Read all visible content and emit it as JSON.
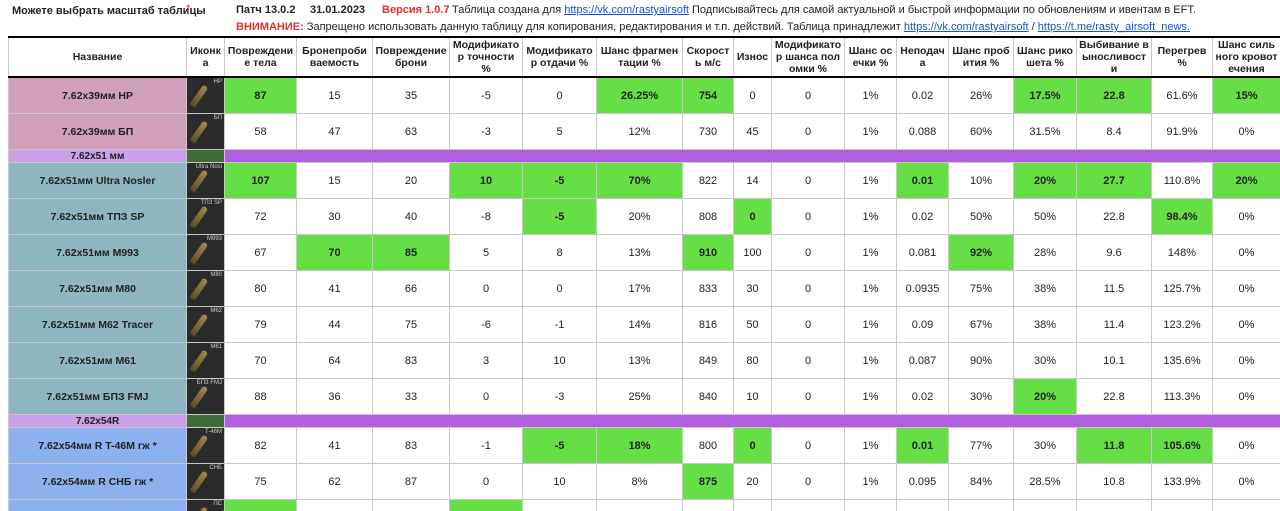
{
  "top": {
    "scale_hint": "Можете выбрать масштаб таблицы",
    "arrow": "↑",
    "patch": "Патч 13.0.2",
    "date": "31.01.2023",
    "version": "Версия 1.0.7",
    "info": [
      "Таблица создана для",
      "https://vk.com/rastyairsoft",
      "Подписывайтесь для самой актуальной и быстрой информации по обновлениям и ивентам в EFT."
    ]
  },
  "warning": {
    "label": "ВНИМАНИЕ:",
    "text": "Запрещено использовать данную таблицу для копирования, редактирования и т.п. действий. Таблица принадлежит",
    "link1": "https://vk.com/rastyairsoft",
    "sep": "/",
    "link2": "https://t.me/rasty_airsoft_news."
  },
  "table": {
    "headers": [
      "Название",
      "Иконка",
      "Повреждение тела",
      "Бронепробиваемость",
      "Повреждение брони",
      "Модификатор точности %",
      "Модификатор отдачи %",
      "Шанс фрагментации %",
      "Скорость м/с",
      "Износ",
      "Модификатор шанса поломки %",
      "Шанс осечки %",
      "Неподача",
      "Шанс пробития %",
      "Шанс рикошета %",
      "Выбивание выносливости",
      "Перегрев %",
      "Шанс сильного кровотечения"
    ],
    "rows": [
      {
        "name": "7.62x39мм HP",
        "icon": "HP",
        "family": "39",
        "cells": [
          "87",
          "15",
          "35",
          "-5",
          "0",
          "26.25%",
          "754",
          "0",
          "0",
          "1%",
          "0.02",
          "26%",
          "17.5%",
          "22.8",
          "61.6%",
          "15%"
        ],
        "green": [
          0,
          5,
          6,
          12,
          13,
          15
        ]
      },
      {
        "name": "7.62x39мм БП",
        "icon": "БП",
        "family": "39",
        "cells": [
          "58",
          "47",
          "63",
          "-3",
          "5",
          "12%",
          "730",
          "45",
          "0",
          "1%",
          "0.088",
          "60%",
          "31.5%",
          "8.4",
          "91.9%",
          "0%"
        ],
        "green": []
      },
      {
        "group": "7.62x51 мм"
      },
      {
        "name": "7.62x51мм Ultra Nosler",
        "icon": "Ultra Nosl",
        "family": "51",
        "cells": [
          "107",
          "15",
          "20",
          "10",
          "-5",
          "70%",
          "822",
          "14",
          "0",
          "1%",
          "0.01",
          "10%",
          "20%",
          "27.7",
          "110.8%",
          "20%"
        ],
        "green": [
          0,
          3,
          4,
          5,
          10,
          12,
          13,
          15
        ]
      },
      {
        "name": "7.62x51мм ТПЗ SP",
        "icon": "ТПЗ SP",
        "family": "51",
        "cells": [
          "72",
          "30",
          "40",
          "-8",
          "-5",
          "20%",
          "808",
          "0",
          "0",
          "1%",
          "0.02",
          "50%",
          "50%",
          "22.8",
          "98.4%",
          "0%"
        ],
        "green": [
          4,
          7,
          14
        ]
      },
      {
        "name": "7.62x51мм M993",
        "icon": "M993",
        "family": "51",
        "cells": [
          "67",
          "70",
          "85",
          "5",
          "8",
          "13%",
          "910",
          "100",
          "0",
          "1%",
          "0.081",
          "92%",
          "28%",
          "9.6",
          "148%",
          "0%"
        ],
        "green": [
          1,
          2,
          6,
          11
        ]
      },
      {
        "name": "7.62x51мм M80",
        "icon": "M80",
        "family": "51",
        "cells": [
          "80",
          "41",
          "66",
          "0",
          "0",
          "17%",
          "833",
          "30",
          "0",
          "1%",
          "0.0935",
          "75%",
          "38%",
          "11.5",
          "125.7%",
          "0%"
        ],
        "green": []
      },
      {
        "name": "7.62x51мм M62 Tracer",
        "icon": "M62",
        "family": "51",
        "cells": [
          "79",
          "44",
          "75",
          "-6",
          "-1",
          "14%",
          "816",
          "50",
          "0",
          "1%",
          "0.09",
          "67%",
          "38%",
          "11.4",
          "123.2%",
          "0%"
        ],
        "green": []
      },
      {
        "name": "7.62x51мм M61",
        "icon": "M61",
        "family": "51",
        "cells": [
          "70",
          "64",
          "83",
          "3",
          "10",
          "13%",
          "849",
          "80",
          "0",
          "1%",
          "0.087",
          "90%",
          "30%",
          "10.1",
          "135.6%",
          "0%"
        ],
        "green": []
      },
      {
        "name": "7.62x51мм БПЗ FMJ",
        "icon": "БПЗ FMJ",
        "family": "51",
        "cells": [
          "88",
          "36",
          "33",
          "0",
          "-3",
          "25%",
          "840",
          "10",
          "0",
          "1%",
          "0.02",
          "30%",
          "20%",
          "22.8",
          "113.3%",
          "0%"
        ],
        "green": [
          12
        ]
      },
      {
        "group": "7.62x54R"
      },
      {
        "name": "7.62x54мм R T-46M гж *",
        "icon": "T-46M",
        "family": "54",
        "cells": [
          "82",
          "41",
          "83",
          "-1",
          "-5",
          "18%",
          "800",
          "0",
          "0",
          "1%",
          "0.01",
          "77%",
          "30%",
          "11.8",
          "105.6%",
          "0%"
        ],
        "green": [
          4,
          5,
          7,
          10,
          13,
          14
        ]
      },
      {
        "name": "7.62x54мм R СНБ гж *",
        "icon": "СНБ",
        "family": "54",
        "cells": [
          "75",
          "62",
          "87",
          "0",
          "10",
          "8%",
          "875",
          "20",
          "0",
          "1%",
          "0.095",
          "84%",
          "28.5%",
          "10.8",
          "133.9%",
          "0%"
        ],
        "green": [
          6
        ]
      },
      {
        "icon": "ПС",
        "family": "54",
        "green": [
          0,
          3
        ]
      }
    ]
  }
}
